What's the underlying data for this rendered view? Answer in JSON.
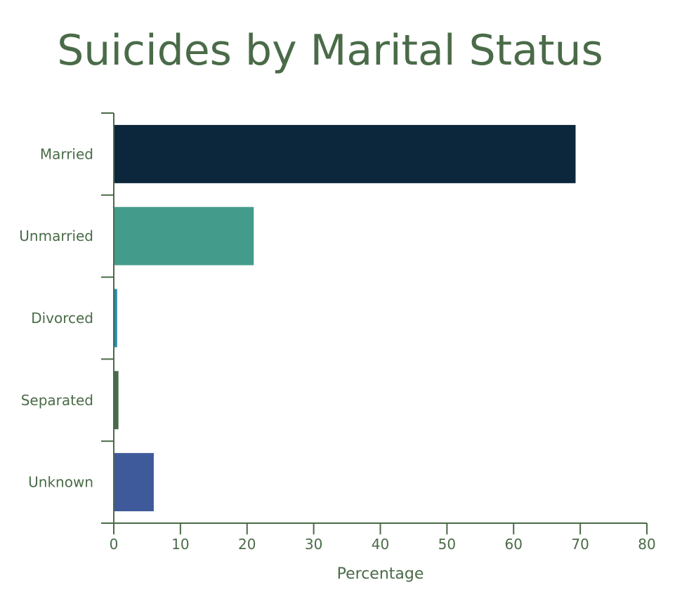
{
  "chart_data": {
    "type": "bar",
    "orientation": "horizontal",
    "title": "Suicides by Marital Status",
    "xlabel": "Percentage",
    "ylabel": "",
    "categories": [
      "Married",
      "Unmarried",
      "Divorced",
      "Separated",
      "Unknown"
    ],
    "values": [
      69.3,
      21.0,
      0.5,
      0.7,
      6.0
    ],
    "colors": [
      "#0c263b",
      "#439b8b",
      "#2689b1",
      "#476a49",
      "#3f5a9b"
    ],
    "xlim": [
      0,
      80
    ],
    "xticks": [
      0,
      10,
      20,
      30,
      40,
      50,
      60,
      70,
      80
    ],
    "grid": false,
    "legend": "none",
    "axis_color": "#4a6b48",
    "text_color": "#4a6b48"
  }
}
